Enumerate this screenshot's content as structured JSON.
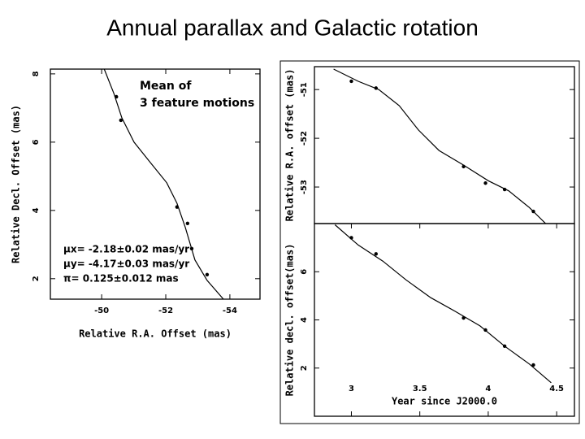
{
  "title": "Annual parallax and Galactic rotation",
  "chart_data": [
    {
      "type": "scatter",
      "xlabel": "Relative R.A. Offset (mas)",
      "ylabel": "Relative Decl. Offset (mas)",
      "xlim": [
        -48.4,
        -54.94
      ],
      "ylim": [
        1.4,
        8.14
      ],
      "xticks": [
        -50,
        -52,
        -54
      ],
      "yticks": [
        2,
        4,
        6,
        8
      ],
      "annotations": [
        "Mean of",
        "3 feature motions",
        "μx= -2.18±0.02 mas/yr",
        "μy= -4.17±0.03 mas/yr",
        "π= 0.125±0.012 mas"
      ],
      "series": [
        {
          "style": "points",
          "color": "#000000",
          "x": [
            -50.46,
            -50.6,
            -52.35,
            -52.68,
            -52.81,
            -53.29
          ],
          "values": [
            7.33,
            6.64,
            4.1,
            3.62,
            2.88,
            2.12
          ]
        },
        {
          "style": "line",
          "color": "#000000",
          "x": [
            -50.08,
            -50.38,
            -50.63,
            -51.01,
            -51.52,
            -52.03,
            -52.35,
            -52.61,
            -52.91,
            -53.29,
            -53.8
          ],
          "values": [
            8.14,
            7.43,
            6.71,
            6.0,
            5.4,
            4.81,
            4.21,
            3.5,
            2.55,
            1.95,
            1.4
          ]
        }
      ]
    },
    {
      "type": "scatter",
      "ylabel": "Relative R.A. offset (mas)",
      "xlim": [
        2.73,
        4.63
      ],
      "ylim": [
        -53.75,
        -50.53
      ],
      "yticks": [
        -51,
        -52,
        -53
      ],
      "series": [
        {
          "style": "points",
          "color": "#000000",
          "x": [
            3.0,
            3.18,
            3.82,
            3.98,
            4.12,
            4.33
          ],
          "values": [
            -50.83,
            -50.97,
            -52.58,
            -52.92,
            -53.05,
            -53.5
          ]
        },
        {
          "style": "line",
          "color": "#000000",
          "x": [
            2.87,
            3.05,
            3.2,
            3.35,
            3.49,
            3.64,
            3.82,
            4.0,
            4.15,
            4.3,
            4.42
          ],
          "values": [
            -50.58,
            -50.83,
            -51.0,
            -51.33,
            -51.83,
            -52.25,
            -52.55,
            -52.87,
            -53.08,
            -53.42,
            -53.75
          ]
        }
      ]
    },
    {
      "type": "scatter",
      "xlabel": "Year since J2000.0",
      "ylabel": "Relative decl. offset(mas)",
      "xlim": [
        2.73,
        4.63
      ],
      "ylim": [
        0,
        8
      ],
      "xticks": [
        3,
        3.5,
        4,
        4.5
      ],
      "yticks": [
        2,
        4,
        6
      ],
      "series": [
        {
          "style": "points",
          "color": "#000000",
          "x": [
            3.0,
            3.18,
            3.82,
            3.98,
            4.12,
            4.33
          ],
          "values": [
            7.41,
            6.74,
            4.08,
            3.58,
            2.91,
            2.13
          ]
        },
        {
          "style": "line",
          "color": "#000000",
          "x": [
            2.88,
            3.05,
            3.23,
            3.4,
            3.58,
            3.76,
            3.94,
            4.12,
            4.3,
            4.46
          ],
          "values": [
            7.95,
            7.11,
            6.44,
            5.66,
            4.92,
            4.35,
            3.75,
            2.91,
            2.17,
            1.39
          ]
        }
      ]
    }
  ]
}
